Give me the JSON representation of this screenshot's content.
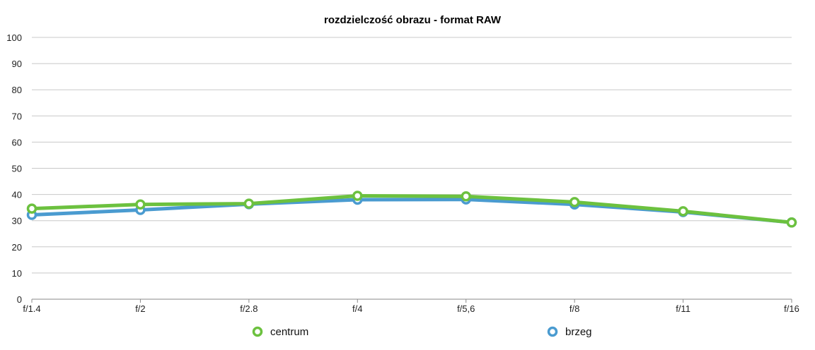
{
  "chart_data": {
    "type": "line",
    "title": "rozdzielczość obrazu - format RAW",
    "xlabel": "",
    "ylabel": "",
    "categories": [
      "f/1.4",
      "f/2",
      "f/2.8",
      "f/4",
      "f/5,6",
      "f/8",
      "f/11",
      "f/16"
    ],
    "ylim": [
      0,
      100
    ],
    "yticks": [
      0,
      10,
      20,
      30,
      40,
      50,
      60,
      70,
      80,
      90,
      100
    ],
    "grid": true,
    "legend_position": "bottom",
    "series": [
      {
        "name": "brzeg",
        "color": "#4a9bd0",
        "values": [
          32.2,
          34.1,
          36.3,
          38.0,
          38.1,
          36.2,
          33.3,
          29.3
        ]
      },
      {
        "name": "centrum",
        "color": "#6cc13f",
        "values": [
          34.6,
          36.2,
          36.5,
          39.5,
          39.3,
          37.1,
          33.6,
          29.3
        ]
      }
    ]
  }
}
